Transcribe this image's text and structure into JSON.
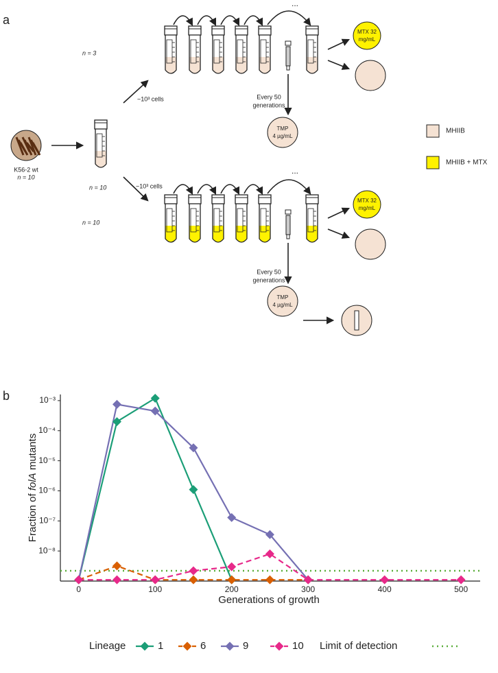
{
  "panel_a": {
    "label": "a",
    "strain": "K56-2 wt",
    "strain_n": "n = 10",
    "split_n": "n = 10",
    "top": {
      "n_label": "n = 3",
      "inoculum": "~10³ cells",
      "ellipsis": "...",
      "sampling": [
        "Every 50",
        "generations"
      ],
      "mtx_plate": [
        "MTX 32",
        "mg/mL"
      ],
      "tmp_plate": [
        "TMP",
        "4 µg/mL"
      ]
    },
    "bottom": {
      "n_label": "n = 10",
      "inoculum": "~10³ cells",
      "ellipsis": "...",
      "sampling": [
        "Every 50",
        "generations"
      ],
      "mtx_plate": [
        "MTX 32",
        "mg/mL"
      ],
      "tmp_plate": [
        "TMP",
        "4 µg/mL"
      ]
    },
    "legend": [
      {
        "name": "MHIIB",
        "color": "#f5e2d3"
      },
      {
        "name": "MHIIB + MTX",
        "color": "#fff200"
      }
    ]
  },
  "chart_data": {
    "type": "line",
    "label": "b",
    "xlabel": "Generations of growth",
    "ylabel": {
      "prefix": "Fraction of ",
      "italic": "folA",
      "suffix": " mutants"
    },
    "log_y": true,
    "x": [
      0,
      50,
      100,
      150,
      200,
      250,
      300,
      400,
      500
    ],
    "xlim": [
      -24,
      525
    ],
    "xticks": [
      0,
      100,
      200,
      300,
      400,
      500
    ],
    "ylim": [
      1e-09,
      0.0016
    ],
    "yticks": [
      {
        "value": 0.001,
        "label": "10⁻³"
      },
      {
        "value": 0.0001,
        "label": "10⁻⁴"
      },
      {
        "value": 1e-05,
        "label": "10⁻⁵"
      },
      {
        "value": 1e-06,
        "label": "10⁻⁶"
      },
      {
        "value": 1e-07,
        "label": "10⁻⁷"
      },
      {
        "value": 1e-08,
        "label": "10⁻⁸"
      }
    ],
    "legend_title": "Lineage",
    "series": [
      {
        "name": "1",
        "color": "#1b9e77",
        "dash": false,
        "values": [
          1.1e-09,
          0.0002,
          0.0012,
          1.1e-06,
          1.1e-09,
          null,
          null,
          null,
          null
        ]
      },
      {
        "name": "6",
        "color": "#d95f02",
        "dash": true,
        "values": [
          1.1e-09,
          3.2e-09,
          1.1e-09,
          1.1e-09,
          1.1e-09,
          1.1e-09,
          1.1e-09,
          null,
          null
        ]
      },
      {
        "name": "9",
        "color": "#7570b3",
        "dash": false,
        "values": [
          1.1e-09,
          0.00075,
          0.00045,
          2.7e-05,
          1.3e-07,
          3.5e-08,
          1.1e-09,
          null,
          null
        ]
      },
      {
        "name": "10",
        "color": "#e7298a",
        "dash": true,
        "values": [
          1.1e-09,
          1.1e-09,
          1.1e-09,
          2.2e-09,
          3e-09,
          8e-09,
          1.1e-09,
          1.1e-09,
          1.1e-09
        ]
      }
    ],
    "detection": {
      "name": "Limit of detection",
      "value": 2.2e-09,
      "color": "#5aae3a"
    }
  }
}
